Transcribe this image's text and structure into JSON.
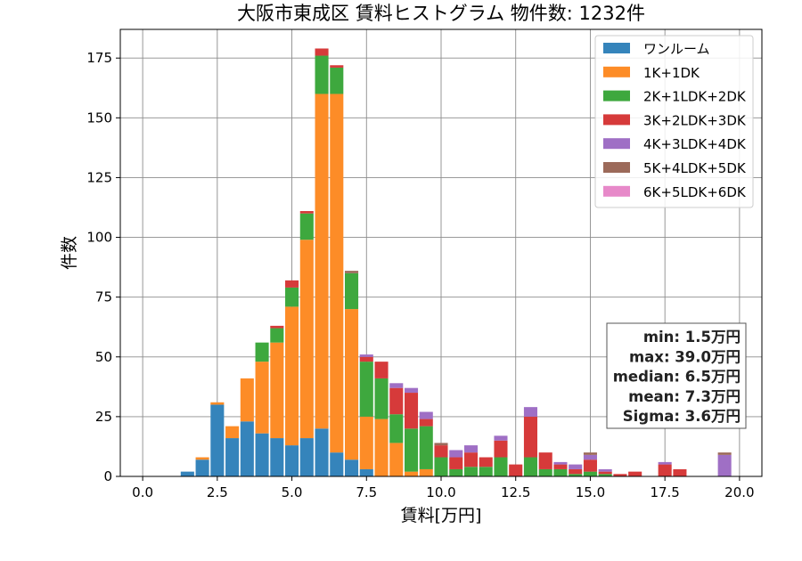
{
  "chart_data": {
    "type": "bar",
    "stacked": true,
    "title": "大阪市東成区 賃料ヒストグラム  物件数: 1232件",
    "xlabel": "賃料[万円]",
    "ylabel": "件数",
    "xlim": [
      -0.75,
      20.75
    ],
    "ylim": [
      0,
      187
    ],
    "xticks": [
      "0.0",
      "2.5",
      "5.0",
      "7.5",
      "10.0",
      "12.5",
      "15.0",
      "17.5",
      "20.0"
    ],
    "xtick_values": [
      0,
      2.5,
      5,
      7.5,
      10,
      12.5,
      15,
      17.5,
      20
    ],
    "yticks": [
      "0",
      "25",
      "50",
      "75",
      "100",
      "125",
      "150",
      "175"
    ],
    "ytick_values": [
      0,
      25,
      50,
      75,
      100,
      125,
      150,
      175
    ],
    "grid": true,
    "legend_position": "top-right",
    "bin_width": 0.5,
    "x": [
      1.5,
      2.0,
      2.5,
      3.0,
      3.5,
      4.0,
      4.5,
      5.0,
      5.5,
      6.0,
      6.5,
      7.0,
      7.5,
      8.0,
      8.5,
      9.0,
      9.5,
      10.0,
      10.5,
      11.0,
      11.5,
      12.0,
      12.5,
      13.0,
      13.5,
      14.0,
      14.5,
      15.0,
      15.5,
      16.0,
      16.5,
      17.0,
      17.5,
      18.0,
      18.5,
      19.0,
      19.5
    ],
    "series": [
      {
        "name": "ワンルーム",
        "color": "#3584bb",
        "values": [
          2,
          7,
          30,
          16,
          23,
          18,
          16,
          13,
          16,
          20,
          10,
          7,
          3,
          0,
          0,
          0,
          0,
          0,
          0,
          0,
          0,
          0,
          0,
          0,
          0,
          0,
          0,
          0,
          0,
          0,
          0,
          0,
          0,
          0,
          0,
          0,
          0
        ]
      },
      {
        "name": "1K+1DK",
        "color": "#fd8c27",
        "values": [
          0,
          1,
          1,
          5,
          18,
          30,
          40,
          58,
          83,
          140,
          150,
          63,
          22,
          24,
          14,
          2,
          3,
          0,
          0,
          0,
          0,
          0,
          0,
          0,
          0,
          0,
          0,
          0,
          0,
          0,
          0,
          0,
          0,
          0,
          0,
          0,
          0
        ]
      },
      {
        "name": "2K+1LDK+2DK",
        "color": "#3ea83e",
        "values": [
          0,
          0,
          0,
          0,
          0,
          8,
          6,
          8,
          11,
          16,
          11,
          15,
          23,
          17,
          12,
          18,
          18,
          8,
          3,
          4,
          4,
          8,
          0,
          8,
          3,
          3,
          1,
          2,
          1,
          0,
          0,
          0,
          0,
          0,
          0,
          0,
          0
        ]
      },
      {
        "name": "3K+2LDK+3DK",
        "color": "#d63a3a",
        "values": [
          0,
          0,
          0,
          0,
          0,
          0,
          1,
          3,
          1,
          3,
          1,
          0,
          2,
          7,
          11,
          15,
          3,
          5,
          5,
          6,
          4,
          7,
          5,
          17,
          7,
          2,
          2,
          5,
          1,
          1,
          2,
          0,
          5,
          3,
          0,
          0,
          0
        ]
      },
      {
        "name": "4K+3LDK+4DK",
        "color": "#9f6fc5",
        "values": [
          0,
          0,
          0,
          0,
          0,
          0,
          0,
          0,
          0,
          0,
          0,
          0,
          1,
          0,
          2,
          2,
          3,
          0,
          3,
          3,
          0,
          2,
          0,
          4,
          0,
          1,
          2,
          2,
          1,
          0,
          0,
          0,
          1,
          0,
          0,
          0,
          9
        ]
      },
      {
        "name": "5K+4LDK+5DK",
        "color": "#9c6a5a",
        "values": [
          0,
          0,
          0,
          0,
          0,
          0,
          0,
          0,
          0,
          0,
          0,
          1,
          0,
          0,
          0,
          0,
          0,
          1,
          0,
          0,
          0,
          0,
          0,
          0,
          0,
          0,
          0,
          1,
          0,
          0,
          0,
          0,
          0,
          0,
          0,
          0,
          1
        ]
      },
      {
        "name": "6K+5LDK+6DK",
        "color": "#e789c9",
        "values": [
          0,
          0,
          0,
          0,
          0,
          0,
          0,
          0,
          0,
          0,
          0,
          0,
          0,
          0,
          0,
          0,
          0,
          0,
          0,
          0,
          0,
          0,
          0,
          0,
          0,
          0,
          0,
          0,
          0,
          0,
          0,
          0,
          0,
          0,
          0,
          0,
          0
        ]
      }
    ],
    "stats": [
      "min: 1.5万円",
      "max: 39.0万円",
      "median: 6.5万円",
      "mean: 7.3万円",
      "Sigma: 3.6万円"
    ]
  }
}
